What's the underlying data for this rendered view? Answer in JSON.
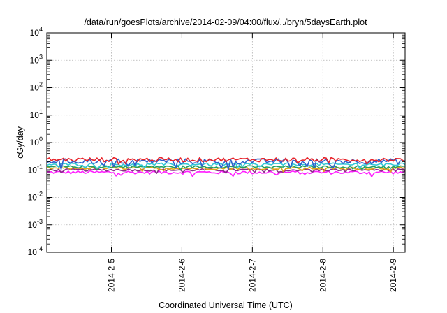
{
  "chart_data": {
    "type": "line",
    "title": "/data/run/goesPlots/archive/2014-02-09/04:00/flux/../bryn/5daysEarth.plot",
    "xlabel": "Coordinated Universal Time (UTC)",
    "ylabel": "cGy/day",
    "y_scale": "log",
    "ylim": [
      0.0001,
      10000
    ],
    "y_ticks": [
      {
        "base": "10",
        "exp": "4",
        "value": 10000
      },
      {
        "base": "10",
        "exp": "3",
        "value": 1000
      },
      {
        "base": "10",
        "exp": "2",
        "value": 100
      },
      {
        "base": "10",
        "exp": "1",
        "value": 10
      },
      {
        "base": "10",
        "exp": "0",
        "value": 1
      },
      {
        "base": "10",
        "exp": "-1",
        "value": 0.1
      },
      {
        "base": "10",
        "exp": "-2",
        "value": 0.01
      },
      {
        "base": "10",
        "exp": "-3",
        "value": 0.001
      },
      {
        "base": "10",
        "exp": "-4",
        "value": 0.0001
      }
    ],
    "xlim": [
      "2014-02-04 02:00",
      "2014-02-09 04:00"
    ],
    "x_ticks": [
      "2014-2-5",
      "2014-2-6",
      "2014-2-7",
      "2014-2-8",
      "2014-2-9"
    ],
    "x_tick_dates": [
      "2014-02-05",
      "2014-02-06",
      "2014-02-07",
      "2014-02-08",
      "2014-02-09"
    ],
    "grid": true,
    "legend": "none",
    "series": [
      {
        "color": "#e8232a",
        "base_value": 0.24,
        "jitter": 0.18
      },
      {
        "color": "#2d5fcc",
        "base_value": 0.21,
        "jitter": 0.22
      },
      {
        "color": "#33c8d6",
        "base_value": 0.16,
        "jitter": 0.12
      },
      {
        "color": "#22a060",
        "base_value": 0.13,
        "jitter": 0.1
      },
      {
        "color": "#e0a418",
        "base_value": 0.115,
        "jitter": 0.1
      },
      {
        "color": "#8b2c8b",
        "base_value": 0.1,
        "jitter": 0.1
      },
      {
        "color": "#ff1fff",
        "base_value": 0.082,
        "jitter": 0.14
      }
    ]
  }
}
